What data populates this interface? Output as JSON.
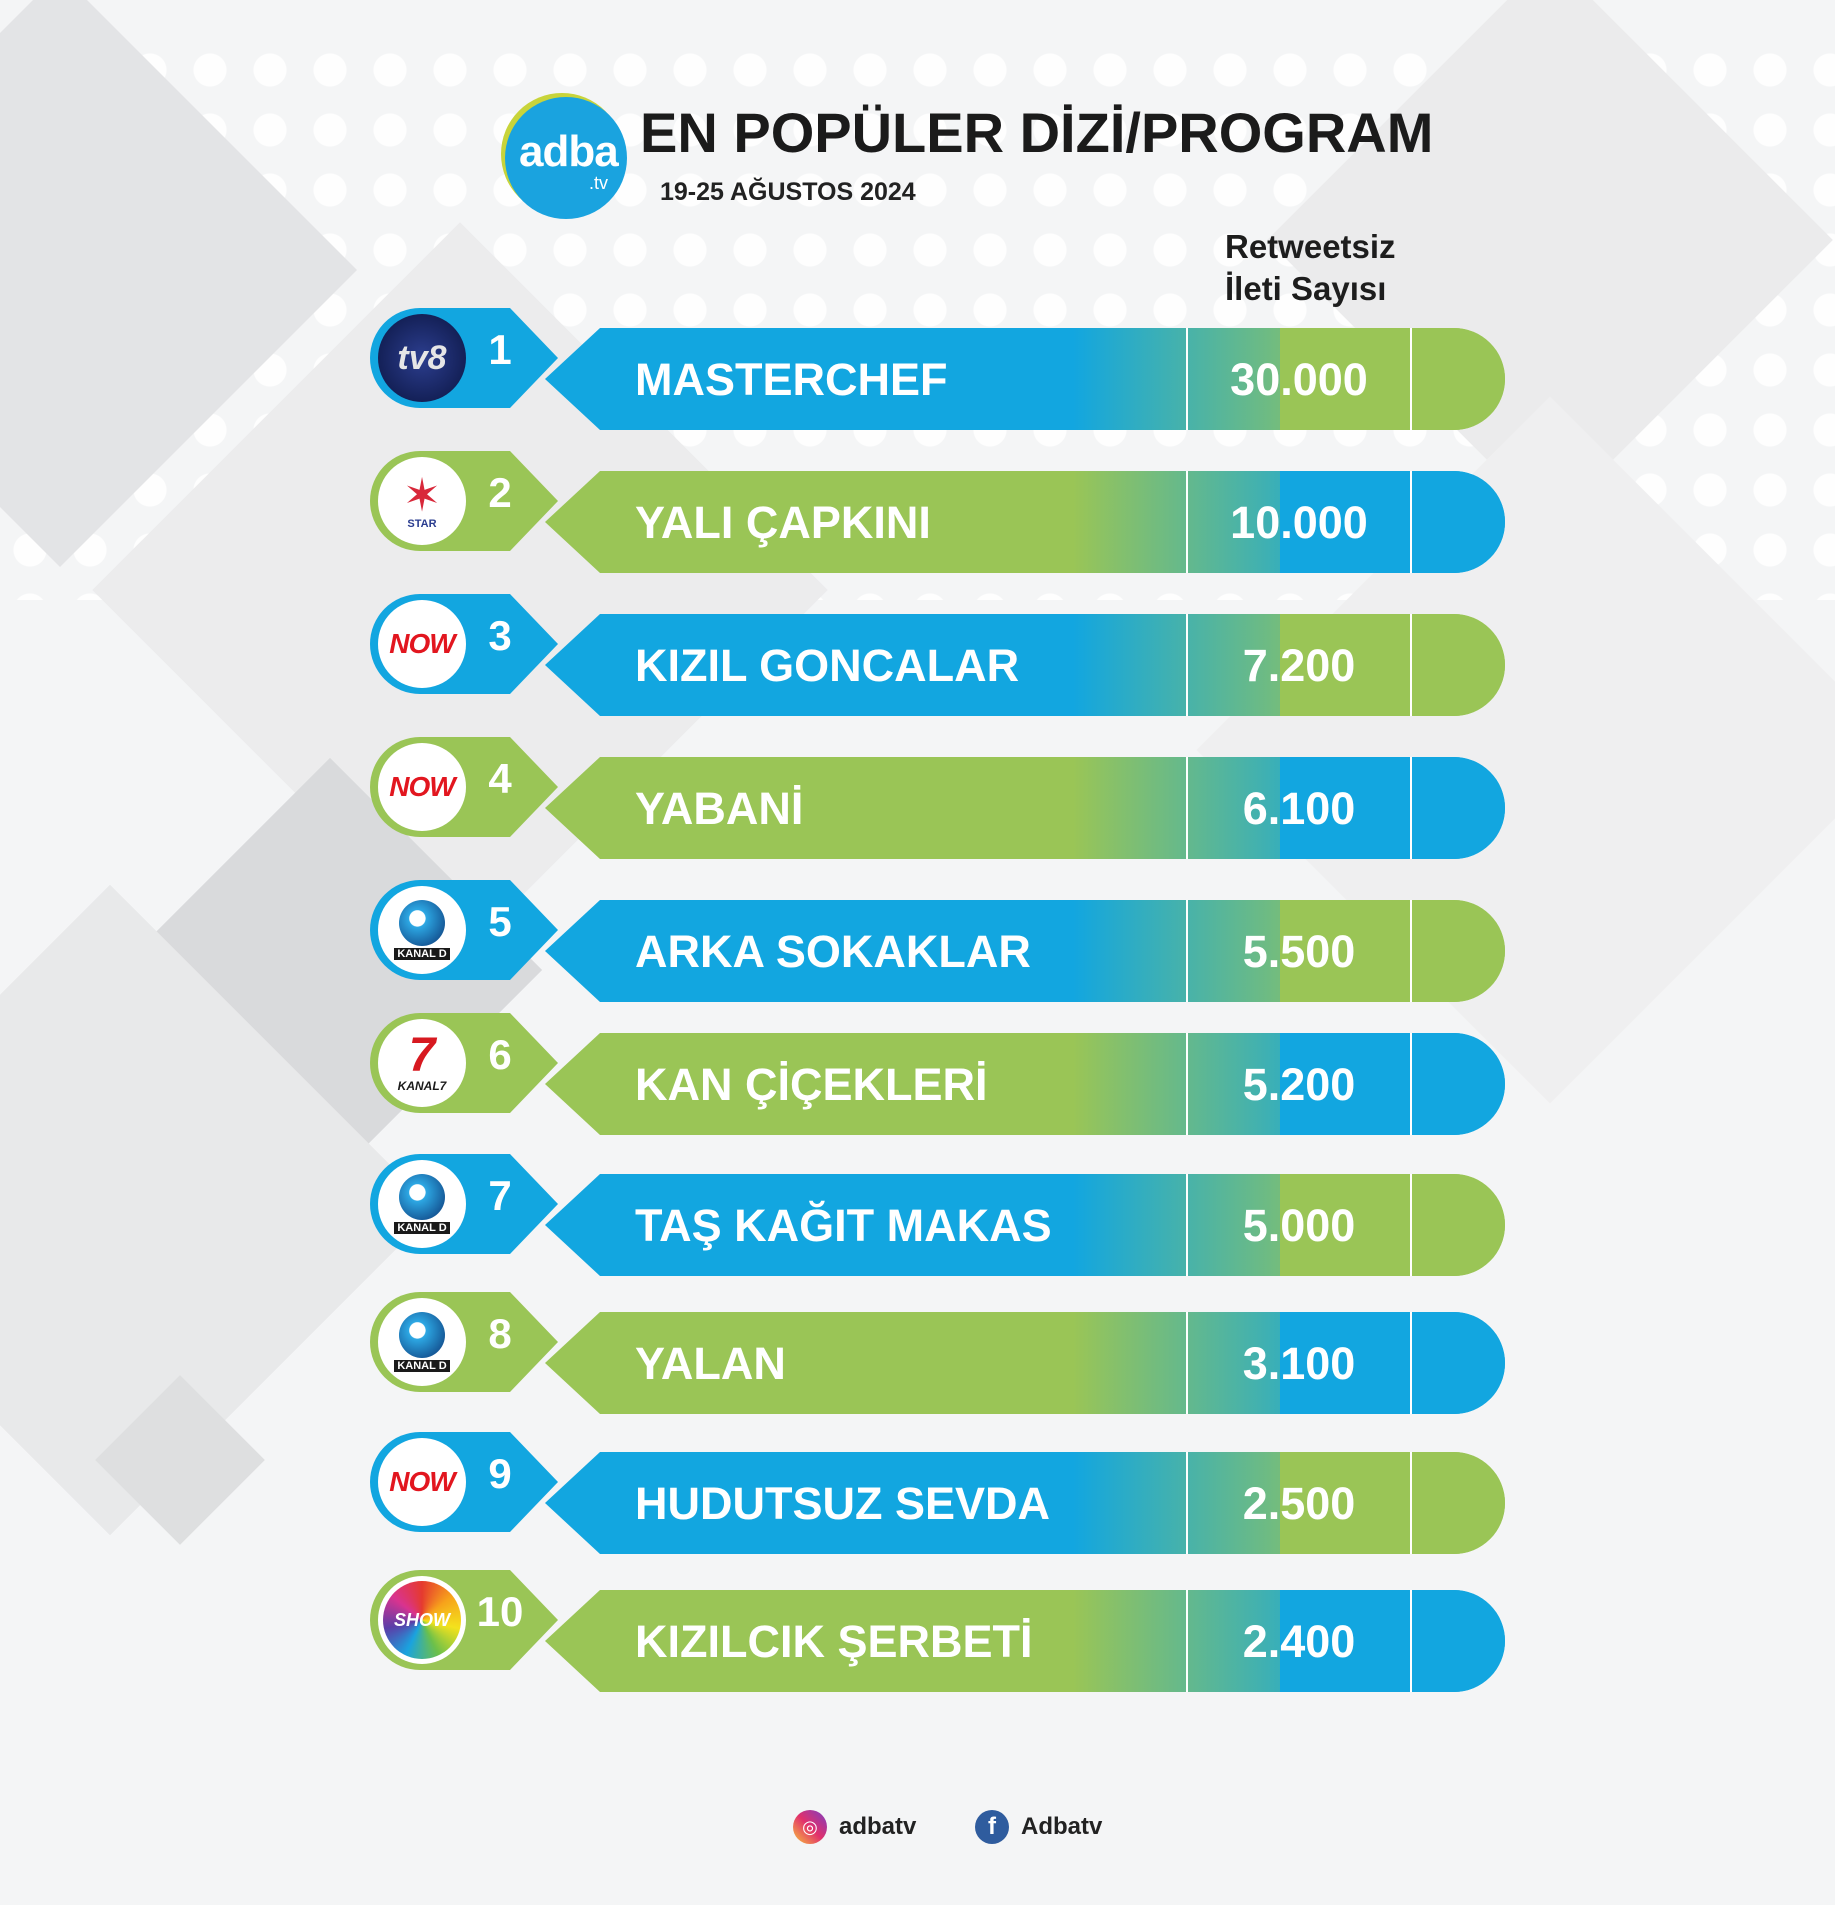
{
  "brand": {
    "name": "adba",
    "suffix": ".tv"
  },
  "title": "EN POPÜLER DİZİ/PROGRAM",
  "subtitle": "19-25 AĞUSTOS 2024",
  "column_header": {
    "line1": "Retweetsiz",
    "line2": "İleti Sayısı"
  },
  "colors": {
    "blue": "#12a6e0",
    "green": "#9ac556",
    "text_dark": "#1b1b1b"
  },
  "rows": [
    {
      "rank": "1",
      "channel": "TV8",
      "channel_icon": "tv8-logo",
      "name": "MASTERCHEF",
      "value": "30.000",
      "scheme": "blue"
    },
    {
      "rank": "2",
      "channel": "STAR",
      "channel_icon": "star-tv-logo",
      "name": "YALI ÇAPKINI",
      "value": "10.000",
      "scheme": "green"
    },
    {
      "rank": "3",
      "channel": "NOW",
      "channel_icon": "now-logo",
      "name": "KIZIL GONCALAR",
      "value": "7.200",
      "scheme": "blue"
    },
    {
      "rank": "4",
      "channel": "NOW",
      "channel_icon": "now-logo",
      "name": "YABANİ",
      "value": "6.100",
      "scheme": "green"
    },
    {
      "rank": "5",
      "channel": "KANAL D",
      "channel_icon": "kanal-d-logo",
      "name": "ARKA SOKAKLAR",
      "value": "5.500",
      "scheme": "blue"
    },
    {
      "rank": "6",
      "channel": "KANAL7",
      "channel_icon": "kanal-7-logo",
      "name": "KAN ÇİÇEKLERİ",
      "value": "5.200",
      "scheme": "green"
    },
    {
      "rank": "7",
      "channel": "KANAL D",
      "channel_icon": "kanal-d-logo",
      "name": "TAŞ KAĞIT MAKAS",
      "value": "5.000",
      "scheme": "blue"
    },
    {
      "rank": "8",
      "channel": "KANAL D",
      "channel_icon": "kanal-d-logo",
      "name": "YALAN",
      "value": "3.100",
      "scheme": "green"
    },
    {
      "rank": "9",
      "channel": "NOW",
      "channel_icon": "now-logo",
      "name": "HUDUTSUZ SEVDA",
      "value": "2.500",
      "scheme": "blue"
    },
    {
      "rank": "10",
      "channel": "SHOW",
      "channel_icon": "show-tv-logo",
      "name": "KIZILCIK ŞERBETİ",
      "value": "2.400",
      "scheme": "green"
    }
  ],
  "footer": {
    "instagram": "adbatv",
    "facebook": "Adbatv"
  }
}
